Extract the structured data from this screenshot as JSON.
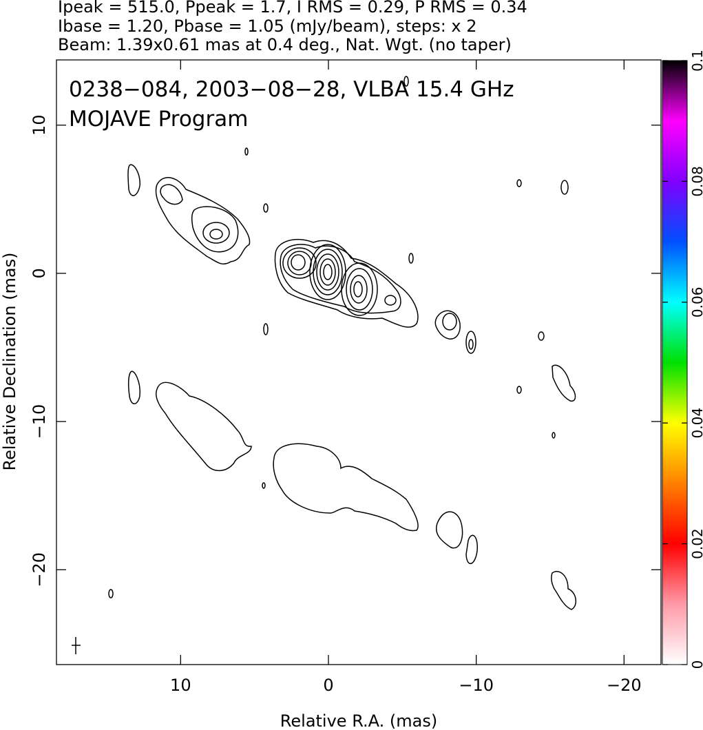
{
  "chart_data": {
    "type": "contour",
    "header": [
      "Ipeak = 515.0, Ppeak = 1.7, I RMS = 0.29, P RMS = 0.34",
      "Ibase = 1.20, Pbase = 1.05 (mJy/beam), steps: x 2",
      "Beam: 1.39x0.61 mas at 0.4 deg., Nat. Wgt. (no taper)"
    ],
    "title": "0238−084, 2003−08−28, VLBA 15.4 GHz",
    "subtitle": "MOJAVE Program",
    "xlabel": "Relative R.A. (mas)",
    "ylabel": "Relative Declination (mas)",
    "xlim": [
      18.4,
      -22.5
    ],
    "ylim": [
      -26.4,
      14.4
    ],
    "xticks": [
      10,
      0,
      {
        "value": -10,
        "label": "−10"
      },
      {
        "value": -20,
        "label": "−20"
      }
    ],
    "yticks": [
      {
        "value": -20,
        "label": "−20"
      },
      {
        "value": -10,
        "label": "−10"
      },
      0,
      10
    ],
    "colorbar": {
      "lim": [
        0,
        0.1
      ],
      "ticks": [
        0,
        0.02,
        0.04,
        0.06,
        0.08,
        0.1
      ],
      "colors": [
        "#ffffff",
        "#ff9aa8",
        "#ff0000",
        "#ff8000",
        "#ffff00",
        "#00e000",
        "#00ffff",
        "#0050ff",
        "#8000ff",
        "#ff00ff",
        "#000000"
      ]
    },
    "contour_color": "#000000"
  }
}
